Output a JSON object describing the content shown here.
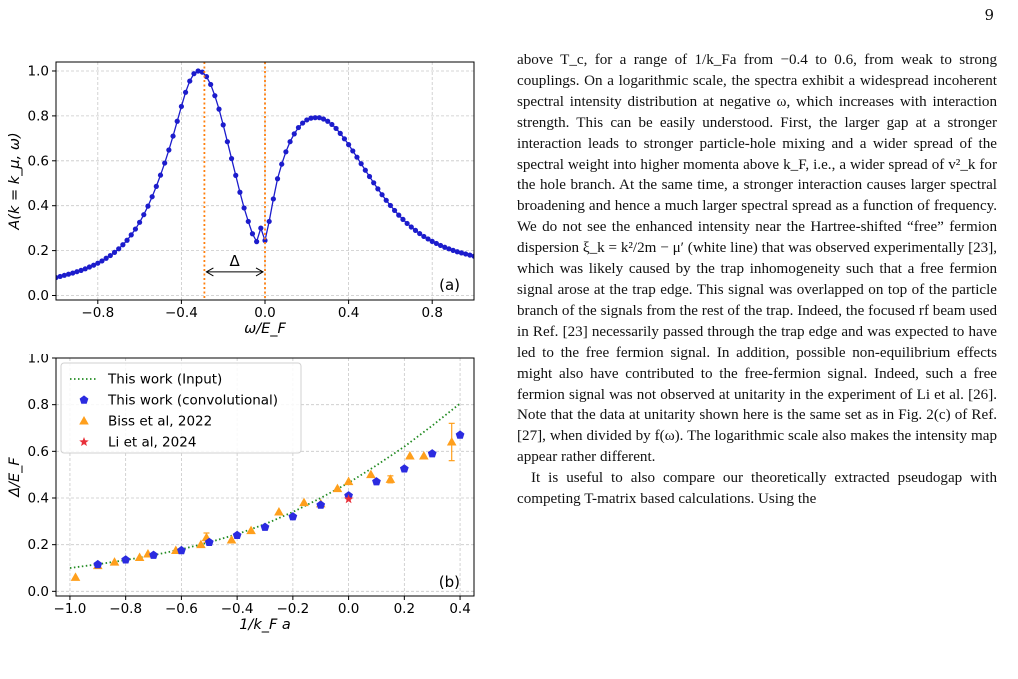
{
  "page_number": "9",
  "chart_data": [
    {
      "id": "a",
      "type": "line",
      "panel_label": "(a)",
      "xlabel": "ω/E_F",
      "ylabel": "A(k = k_μ, ω)",
      "xlim": [
        -1.0,
        1.0
      ],
      "ylim": [
        -0.02,
        1.04
      ],
      "xticks": [
        "−0.8",
        "−0.4",
        "0.0",
        "0.4",
        "0.8"
      ],
      "xtick_values": [
        -0.8,
        -0.4,
        0.0,
        0.4,
        0.8
      ],
      "yticks": [
        "0.0",
        "0.2",
        "0.4",
        "0.6",
        "0.8",
        "1.0"
      ],
      "ytick_values": [
        0.0,
        0.2,
        0.4,
        0.6,
        0.8,
        1.0
      ],
      "grid": true,
      "series_color": "#1c1ccc",
      "series": [
        {
          "x": [
            -1.0,
            -0.98,
            -0.96,
            -0.94,
            -0.92,
            -0.9,
            -0.88,
            -0.86,
            -0.84,
            -0.82,
            -0.8,
            -0.78,
            -0.76,
            -0.74,
            -0.72,
            -0.7,
            -0.68,
            -0.66,
            -0.64,
            -0.62,
            -0.6,
            -0.58,
            -0.56,
            -0.54,
            -0.52,
            -0.5,
            -0.48,
            -0.46,
            -0.44,
            -0.42,
            -0.4,
            -0.38,
            -0.36,
            -0.34,
            -0.32,
            -0.3,
            -0.28,
            -0.26,
            -0.24,
            -0.22,
            -0.2,
            -0.18,
            -0.16,
            -0.14,
            -0.12,
            -0.1,
            -0.08,
            -0.06,
            -0.04,
            -0.02,
            0.0,
            0.02,
            0.04,
            0.06,
            0.08,
            0.1,
            0.12,
            0.14,
            0.16,
            0.18,
            0.2,
            0.22,
            0.24,
            0.26,
            0.28,
            0.3,
            0.32,
            0.34,
            0.36,
            0.38,
            0.4,
            0.42,
            0.44,
            0.46,
            0.48,
            0.5,
            0.52,
            0.54,
            0.56,
            0.58,
            0.6,
            0.62,
            0.64,
            0.66,
            0.68,
            0.7,
            0.72,
            0.74,
            0.76,
            0.78,
            0.8,
            0.82,
            0.84,
            0.86,
            0.88,
            0.9,
            0.92,
            0.94,
            0.96,
            0.98,
            1.0
          ],
          "y": [
            0.08,
            0.085,
            0.09,
            0.095,
            0.1,
            0.106,
            0.112,
            0.119,
            0.127,
            0.135,
            0.144,
            0.154,
            0.166,
            0.178,
            0.192,
            0.208,
            0.226,
            0.246,
            0.27,
            0.296,
            0.326,
            0.36,
            0.398,
            0.44,
            0.486,
            0.536,
            0.59,
            0.648,
            0.71,
            0.776,
            0.842,
            0.905,
            0.955,
            0.988,
            1.0,
            0.995,
            0.975,
            0.94,
            0.89,
            0.83,
            0.76,
            0.685,
            0.61,
            0.535,
            0.46,
            0.39,
            0.33,
            0.275,
            0.24,
            0.3,
            0.245,
            0.33,
            0.43,
            0.52,
            0.585,
            0.64,
            0.685,
            0.72,
            0.748,
            0.768,
            0.782,
            0.79,
            0.792,
            0.792,
            0.786,
            0.776,
            0.762,
            0.744,
            0.722,
            0.698,
            0.672,
            0.644,
            0.616,
            0.587,
            0.558,
            0.53,
            0.502,
            0.475,
            0.449,
            0.424,
            0.401,
            0.379,
            0.358,
            0.339,
            0.321,
            0.305,
            0.29,
            0.276,
            0.263,
            0.252,
            0.241,
            0.232,
            0.223,
            0.215,
            0.208,
            0.201,
            0.195,
            0.19,
            0.185,
            0.18,
            0.175
          ]
        }
      ],
      "annotations": {
        "vlines": [
          -0.29,
          0.0
        ],
        "vline_color": "#ff7f0e",
        "gap_label": "Δ",
        "gap_arrow_y": 0.105
      }
    },
    {
      "id": "b",
      "type": "scatter",
      "panel_label": "(b)",
      "xlabel": "1/k_F a",
      "ylabel": "Δ/E_F",
      "xlim": [
        -1.05,
        0.45
      ],
      "ylim": [
        -0.02,
        1.0
      ],
      "xticks": [
        "−1.0",
        "−0.8",
        "−0.6",
        "−0.4",
        "−0.2",
        "0.0",
        "0.2",
        "0.4"
      ],
      "xtick_values": [
        -1.0,
        -0.8,
        -0.6,
        -0.4,
        -0.2,
        0.0,
        0.2,
        0.4
      ],
      "yticks": [
        "0.0",
        "0.2",
        "0.4",
        "0.6",
        "0.8",
        "1.0"
      ],
      "ytick_values": [
        0.0,
        0.2,
        0.4,
        0.6,
        0.8,
        1.0
      ],
      "grid": true,
      "legend_position": "top-left",
      "series": [
        {
          "name": "This work (Input)",
          "style": "dotted-line",
          "color": "#228b22",
          "x": [
            -1.0,
            -0.9,
            -0.8,
            -0.7,
            -0.6,
            -0.5,
            -0.4,
            -0.3,
            -0.2,
            -0.1,
            0.0,
            0.1,
            0.2,
            0.3,
            0.4
          ],
          "y": [
            0.1,
            0.116,
            0.134,
            0.155,
            0.18,
            0.21,
            0.245,
            0.288,
            0.34,
            0.4,
            0.465,
            0.54,
            0.62,
            0.71,
            0.805
          ]
        },
        {
          "name": "This work (convolutional)",
          "style": "pentagon",
          "color": "#2b2be0",
          "x": [
            -0.9,
            -0.8,
            -0.7,
            -0.6,
            -0.5,
            -0.4,
            -0.3,
            -0.2,
            -0.1,
            0.0,
            0.1,
            0.2,
            0.3,
            0.4
          ],
          "y": [
            0.115,
            0.135,
            0.155,
            0.175,
            0.21,
            0.24,
            0.275,
            0.32,
            0.37,
            0.41,
            0.47,
            0.525,
            0.59,
            0.67
          ]
        },
        {
          "name": "Biss et al, 2022",
          "style": "triangle",
          "color": "#ff9f1c",
          "x": [
            -0.98,
            -0.9,
            -0.84,
            -0.75,
            -0.72,
            -0.62,
            -0.53,
            -0.51,
            -0.42,
            -0.35,
            -0.25,
            -0.16,
            -0.1,
            -0.04,
            0.0,
            0.08,
            0.15,
            0.22,
            0.27,
            0.37
          ],
          "y": [
            0.06,
            0.11,
            0.125,
            0.145,
            0.16,
            0.175,
            0.2,
            0.23,
            0.22,
            0.26,
            0.34,
            0.38,
            0.375,
            0.44,
            0.47,
            0.5,
            0.48,
            0.58,
            0.58,
            0.64
          ],
          "yerr": [
            0,
            0,
            0,
            0,
            0,
            0,
            0,
            0.02,
            0,
            0,
            0,
            0,
            0,
            0,
            0,
            0,
            0.015,
            0,
            0,
            0.08
          ]
        },
        {
          "name": "Li et al, 2024",
          "style": "star",
          "color": "#e8303a",
          "x": [
            0.0
          ],
          "y": [
            0.395
          ]
        }
      ]
    }
  ],
  "body": {
    "para1": "above T_c, for a range of 1/k_Fa from −0.4 to 0.6, from weak to strong couplings. On a logarithmic scale, the spectra exhibit a widespread incoherent spectral intensity distribution at negative ω, which increases with interaction strength. This can be easily understood. First, the larger gap at a stronger interaction leads to stronger particle-hole mixing and a wider spread of the spectral weight into higher momenta above k_F, i.e., a wider spread of v²_k for the hole branch. At the same time, a stronger interaction causes larger spectral broadening and hence a much larger spectral spread as a function of frequency. We do not see the enhanced intensity near the Hartree-shifted “free” fermion dispersion ξ_k = k²/2m − μ′ (white line) that was observed experimentally [23], which was likely caused by the trap inhomogeneity such that a free fermion signal arose at the trap edge. This signal was overlapped on top of the particle branch of the signals from the rest of the trap. Indeed, the focused rf beam used in Ref. [23] necessarily passed through the trap edge and was expected to have led to the free fermion signal. In addition, possible non-equilibrium effects might also have contributed to the free-fermion signal. Indeed, such a free fermion signal was not observed at unitarity in the experiment of Li et al. [26]. Note that the data at unitarity shown here is the same set as in Fig. 2(c) of Ref. [27], when divided by f(ω). The logarithmic scale also makes the intensity map appear rather different.",
    "para2": "It is useful to also compare our theoretically extracted pseudogap with competing T-matrix based calculations. Using the"
  }
}
